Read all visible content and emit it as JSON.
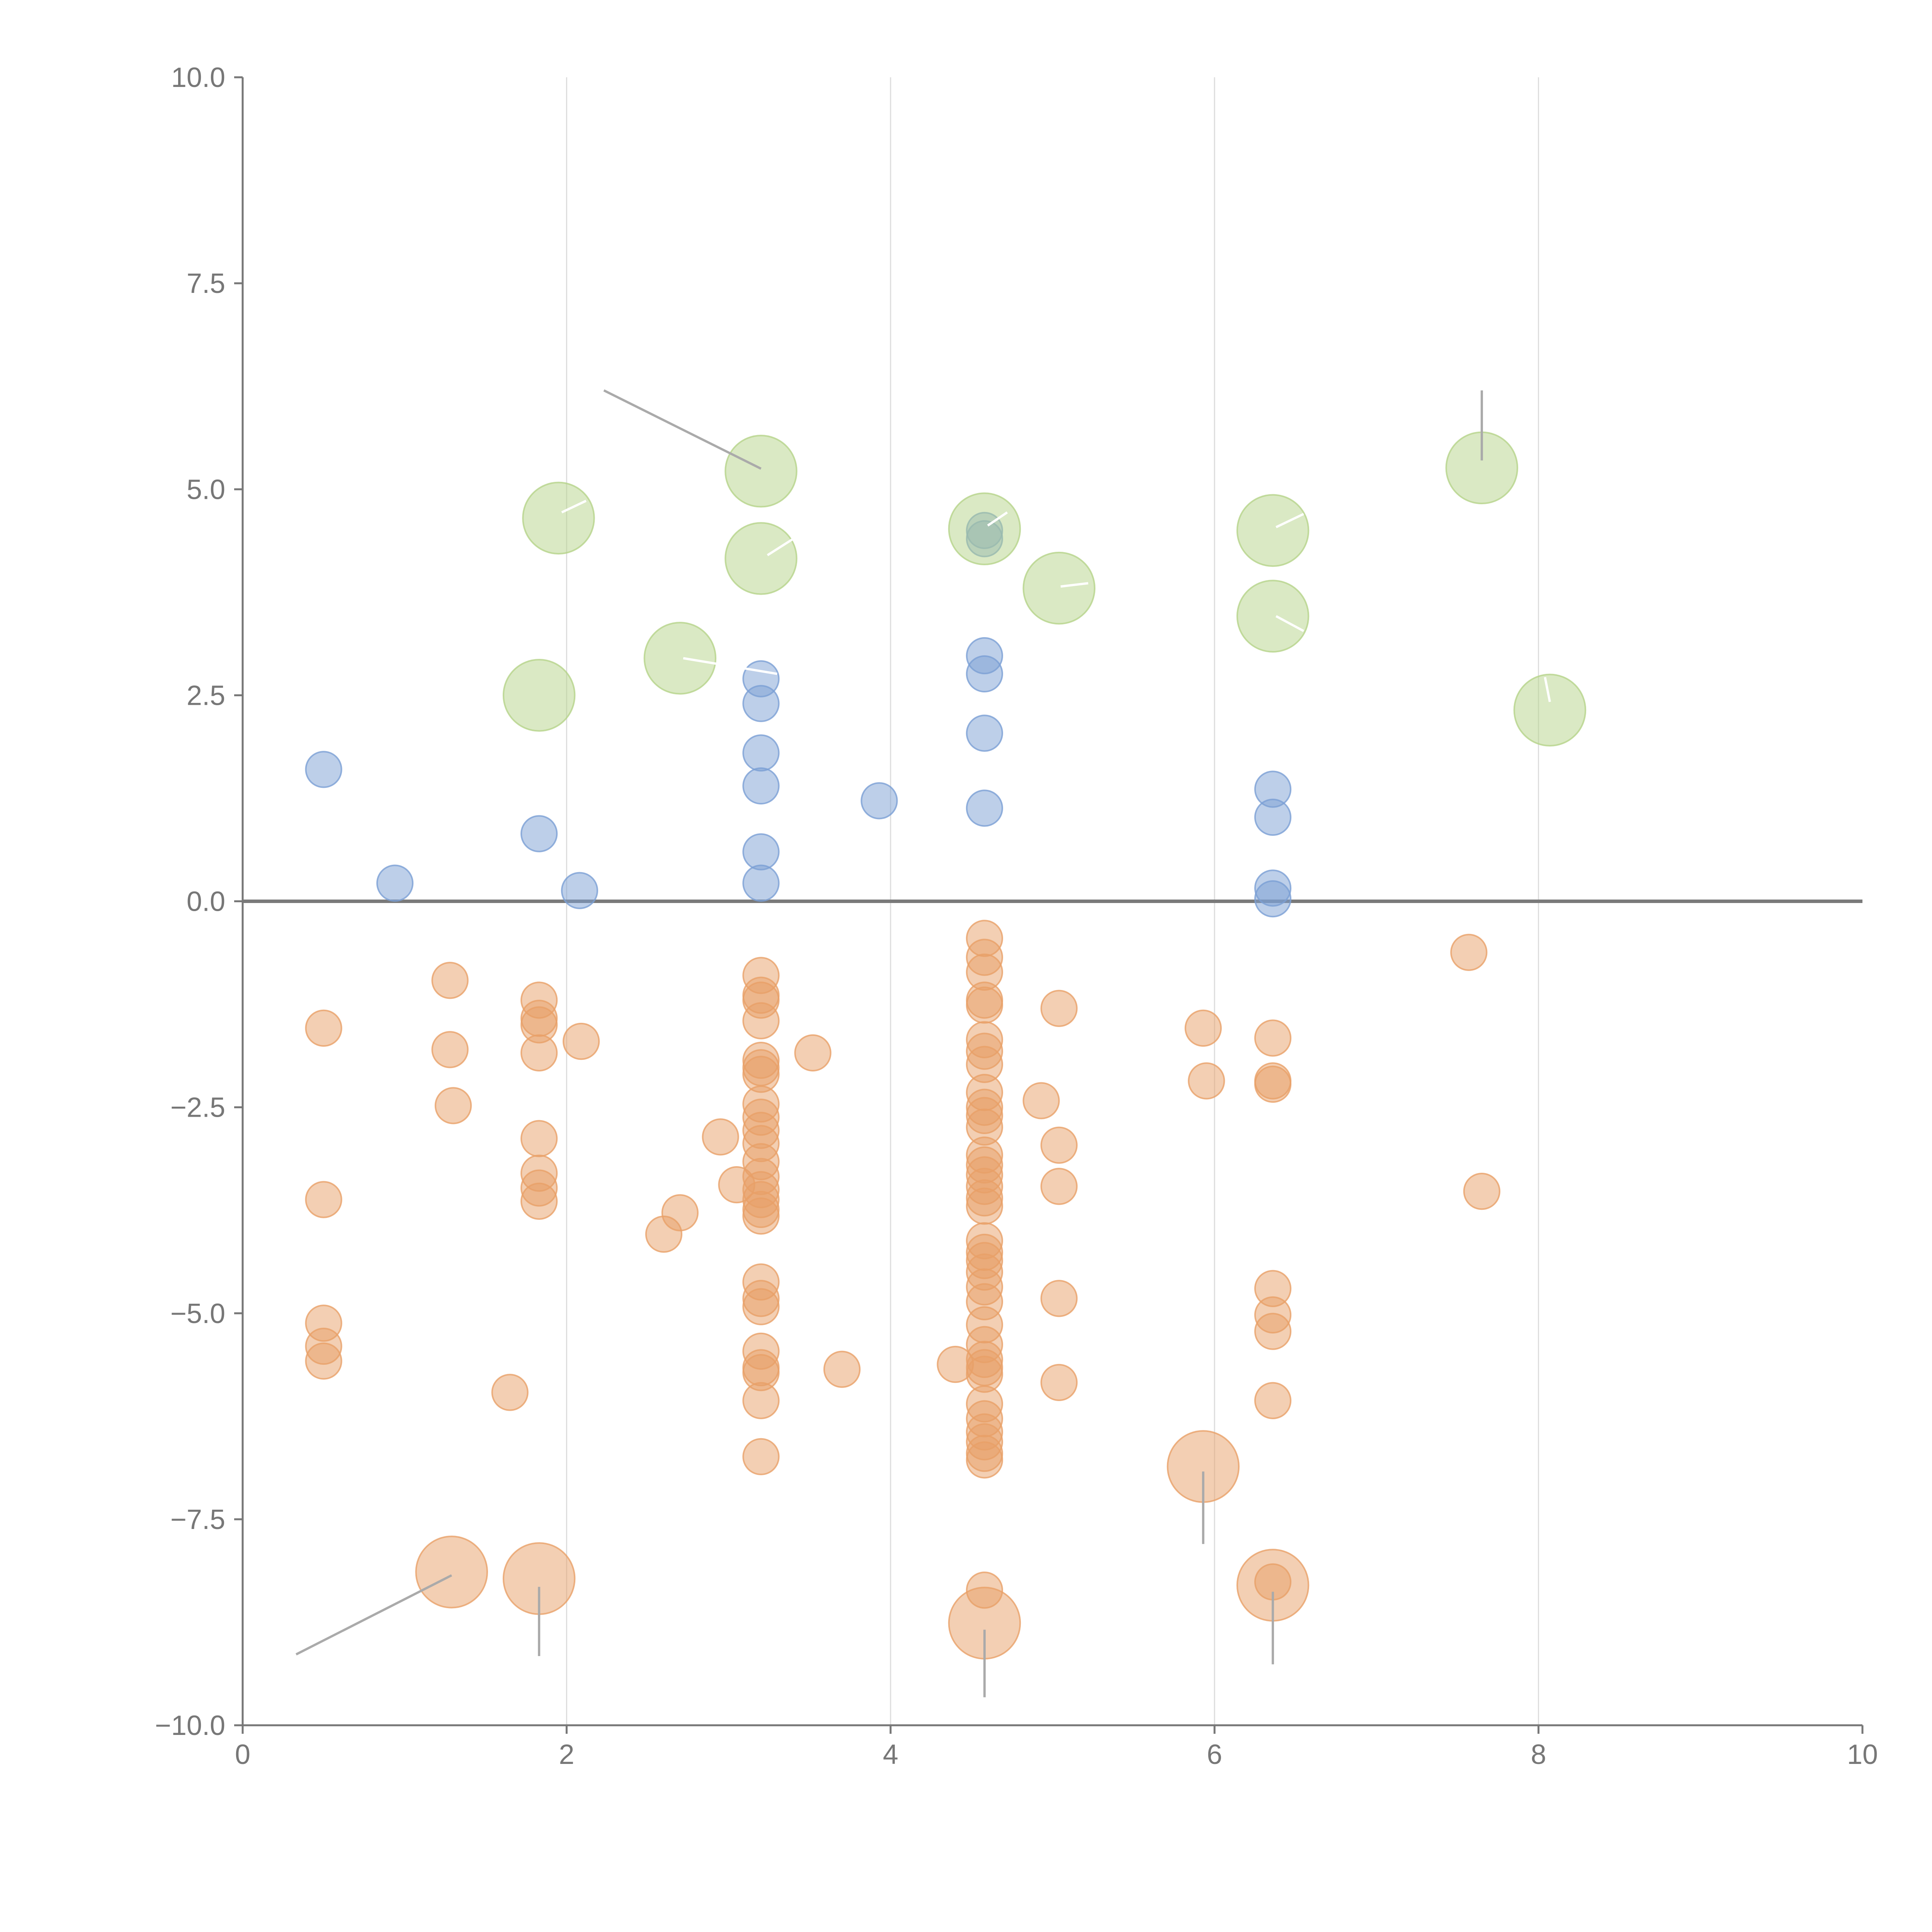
{
  "chart_data": {
    "type": "scatter",
    "title": "",
    "xlabel": "",
    "ylabel": "",
    "xlim": [
      0,
      10
    ],
    "ylim": [
      -10,
      10
    ],
    "grid": "vertical",
    "x_ticks": [
      0,
      2,
      4,
      6,
      8,
      10
    ],
    "x_tick_labels": [
      "0",
      "2",
      "4",
      "6",
      "8",
      "10"
    ],
    "y_ticks": [
      10,
      7.5,
      5,
      2.5,
      0,
      -2.5,
      -5,
      -7.5,
      -10
    ],
    "y_tick_labels": [
      "10.0",
      "7.5",
      "5.0",
      "2.5",
      "0.0",
      "−2.5",
      "−5.0",
      "−7.5",
      "−10.0"
    ],
    "zero_line": 0,
    "colors": {
      "blue": "#7b9fd4",
      "orange": "#e8a068",
      "green": "#b5d38a",
      "axis": "#777777",
      "grid": "#dddddd",
      "zero": "#7a7a7a",
      "leader": "#aaaaaa"
    },
    "series": [
      {
        "name": "blue",
        "radius": 0.11,
        "points": [
          [
            0.5,
            1.6
          ],
          [
            0.94,
            0.22
          ],
          [
            1.83,
            0.82
          ],
          [
            2.08,
            0.13
          ],
          [
            3.2,
            2.7
          ],
          [
            3.2,
            2.4
          ],
          [
            3.2,
            1.8
          ],
          [
            3.2,
            1.4
          ],
          [
            3.2,
            0.6
          ],
          [
            3.2,
            0.22
          ],
          [
            3.93,
            1.22
          ],
          [
            4.58,
            4.5
          ],
          [
            4.58,
            4.4
          ],
          [
            4.58,
            2.98
          ],
          [
            4.58,
            2.76
          ],
          [
            4.58,
            2.04
          ],
          [
            4.58,
            1.13
          ],
          [
            6.36,
            1.36
          ],
          [
            6.36,
            1.02
          ],
          [
            6.36,
            0.16
          ],
          [
            6.36,
            0.03
          ]
        ]
      },
      {
        "name": "orange",
        "radius": 0.11,
        "points": [
          [
            0.5,
            -1.54
          ],
          [
            0.5,
            -3.62
          ],
          [
            0.5,
            -5.12
          ],
          [
            0.5,
            -5.4
          ],
          [
            0.5,
            -5.58
          ],
          [
            1.28,
            -0.96
          ],
          [
            1.28,
            -1.8
          ],
          [
            1.3,
            -2.48
          ],
          [
            1.65,
            -5.96
          ],
          [
            1.83,
            -1.2
          ],
          [
            1.83,
            -1.42
          ],
          [
            1.83,
            -1.5
          ],
          [
            1.83,
            -1.84
          ],
          [
            1.83,
            -2.88
          ],
          [
            1.83,
            -3.3
          ],
          [
            1.83,
            -3.48
          ],
          [
            1.83,
            -3.64
          ],
          [
            2.09,
            -1.7
          ],
          [
            2.6,
            -4.04
          ],
          [
            2.7,
            -3.78
          ],
          [
            2.95,
            -2.86
          ],
          [
            3.05,
            -3.44
          ],
          [
            3.2,
            -0.9
          ],
          [
            3.2,
            -1.14
          ],
          [
            3.2,
            -1.2
          ],
          [
            3.2,
            -1.45
          ],
          [
            3.2,
            -1.93
          ],
          [
            3.2,
            -2.02
          ],
          [
            3.2,
            -2.1
          ],
          [
            3.2,
            -2.46
          ],
          [
            3.2,
            -2.62
          ],
          [
            3.2,
            -2.78
          ],
          [
            3.2,
            -2.94
          ],
          [
            3.2,
            -3.16
          ],
          [
            3.2,
            -3.34
          ],
          [
            3.2,
            -3.5
          ],
          [
            3.2,
            -3.62
          ],
          [
            3.2,
            -3.74
          ],
          [
            3.2,
            -3.82
          ],
          [
            3.2,
            -4.62
          ],
          [
            3.2,
            -4.82
          ],
          [
            3.2,
            -4.92
          ],
          [
            3.2,
            -5.46
          ],
          [
            3.2,
            -5.66
          ],
          [
            3.2,
            -5.72
          ],
          [
            3.2,
            -6.06
          ],
          [
            3.2,
            -6.74
          ],
          [
            3.52,
            -1.84
          ],
          [
            3.7,
            -5.68
          ],
          [
            4.4,
            -5.62
          ],
          [
            4.58,
            -0.45
          ],
          [
            4.58,
            -0.68
          ],
          [
            4.58,
            -0.86
          ],
          [
            4.58,
            -1.2
          ],
          [
            4.58,
            -1.26
          ],
          [
            4.58,
            -1.68
          ],
          [
            4.58,
            -1.82
          ],
          [
            4.58,
            -1.98
          ],
          [
            4.58,
            -2.32
          ],
          [
            4.58,
            -2.5
          ],
          [
            4.58,
            -2.6
          ],
          [
            4.58,
            -2.74
          ],
          [
            4.58,
            -3.08
          ],
          [
            4.58,
            -3.2
          ],
          [
            4.58,
            -3.32
          ],
          [
            4.58,
            -3.46
          ],
          [
            4.58,
            -3.6
          ],
          [
            4.58,
            -3.7
          ],
          [
            4.58,
            -4.12
          ],
          [
            4.58,
            -4.26
          ],
          [
            4.58,
            -4.36
          ],
          [
            4.58,
            -4.5
          ],
          [
            4.58,
            -4.68
          ],
          [
            4.58,
            -4.86
          ],
          [
            4.58,
            -5.14
          ],
          [
            4.58,
            -5.38
          ],
          [
            4.58,
            -5.56
          ],
          [
            4.58,
            -5.66
          ],
          [
            4.58,
            -5.74
          ],
          [
            4.58,
            -6.1
          ],
          [
            4.58,
            -6.28
          ],
          [
            4.58,
            -6.44
          ],
          [
            4.58,
            -6.56
          ],
          [
            4.58,
            -6.7
          ],
          [
            4.58,
            -6.78
          ],
          [
            4.58,
            -8.36
          ],
          [
            4.93,
            -2.42
          ],
          [
            5.04,
            -1.3
          ],
          [
            5.04,
            -2.96
          ],
          [
            5.04,
            -3.46
          ],
          [
            5.04,
            -4.82
          ],
          [
            5.04,
            -5.84
          ],
          [
            5.93,
            -1.54
          ],
          [
            5.95,
            -2.18
          ],
          [
            6.36,
            -1.66
          ],
          [
            6.36,
            -2.18
          ],
          [
            6.36,
            -2.22
          ],
          [
            6.36,
            -4.7
          ],
          [
            6.36,
            -5.02
          ],
          [
            6.36,
            -5.22
          ],
          [
            6.36,
            -6.06
          ],
          [
            6.36,
            -8.26
          ],
          [
            7.57,
            -0.62
          ],
          [
            7.65,
            -3.52
          ]
        ]
      },
      {
        "name": "green",
        "radius": 0.22,
        "points": [
          [
            1.83,
            2.5
          ],
          [
            1.95,
            4.65
          ],
          [
            2.7,
            2.95
          ],
          [
            3.2,
            5.22
          ],
          [
            3.2,
            4.16
          ],
          [
            4.58,
            4.52
          ],
          [
            5.04,
            3.8
          ],
          [
            6.36,
            4.5
          ],
          [
            6.36,
            3.46
          ],
          [
            7.65,
            5.26
          ],
          [
            8.07,
            2.32
          ]
        ]
      },
      {
        "name": "orange-large",
        "radius": 0.22,
        "points": [
          [
            1.29,
            -8.14
          ],
          [
            1.83,
            -8.22
          ],
          [
            4.58,
            -8.76
          ],
          [
            5.93,
            -6.86
          ],
          [
            6.36,
            -8.3
          ]
        ]
      }
    ],
    "leader_lines": [
      {
        "from": [
          2.23,
          6.2
        ],
        "to": [
          3.2,
          5.25
        ],
        "color": "grey"
      },
      {
        "from": [
          7.65,
          6.2
        ],
        "to": [
          7.65,
          5.35
        ],
        "color": "grey"
      },
      {
        "from": [
          0.33,
          -9.14
        ],
        "to": [
          1.29,
          -8.18
        ],
        "color": "grey"
      },
      {
        "from": [
          1.83,
          -9.16
        ],
        "to": [
          1.83,
          -8.32
        ],
        "color": "grey"
      },
      {
        "from": [
          4.58,
          -9.66
        ],
        "to": [
          4.58,
          -8.84
        ],
        "color": "grey"
      },
      {
        "from": [
          5.93,
          -7.8
        ],
        "to": [
          5.93,
          -6.92
        ],
        "color": "grey"
      },
      {
        "from": [
          6.36,
          -9.26
        ],
        "to": [
          6.36,
          -8.38
        ],
        "color": "grey"
      },
      {
        "from": [
          1.97,
          4.72
        ],
        "to": [
          2.12,
          4.86
        ],
        "color": "white"
      },
      {
        "from": [
          3.24,
          4.2
        ],
        "to": [
          3.4,
          4.4
        ],
        "color": "white"
      },
      {
        "from": [
          4.6,
          4.56
        ],
        "to": [
          4.72,
          4.72
        ],
        "color": "white"
      },
      {
        "from": [
          5.05,
          3.82
        ],
        "to": [
          5.22,
          3.86
        ],
        "color": "white"
      },
      {
        "from": [
          6.38,
          4.54
        ],
        "to": [
          6.55,
          4.7
        ],
        "color": "white"
      },
      {
        "from": [
          6.38,
          3.46
        ],
        "to": [
          6.55,
          3.28
        ],
        "color": "white"
      },
      {
        "from": [
          2.72,
          2.95
        ],
        "to": [
          3.3,
          2.76
        ],
        "color": "white"
      },
      {
        "from": [
          8.07,
          2.42
        ],
        "to": [
          8.04,
          2.72
        ],
        "color": "white"
      }
    ]
  }
}
